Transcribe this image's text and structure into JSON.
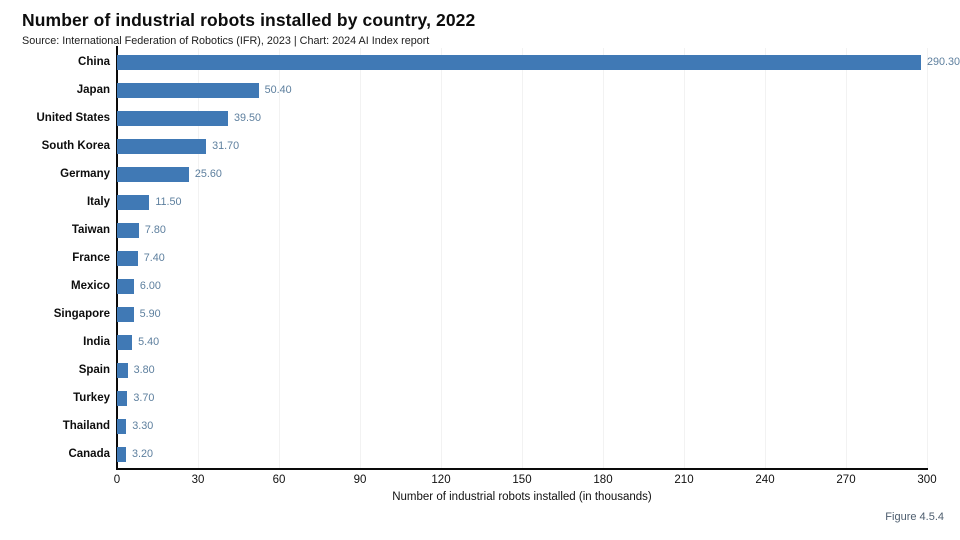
{
  "header": {
    "title": "Number of industrial robots installed by country, 2022",
    "subtitle": "Source: International Federation of Robotics (IFR), 2023 | Chart: 2024 AI Index report"
  },
  "figure_label": "Figure 4.5.4",
  "colors": {
    "bar": "#4079b5",
    "value_label": "#5d7f9e",
    "axis": "#0a0a0a",
    "grid": "#f2f2f2",
    "figure_label": "#4d5d6e"
  },
  "chart_data": {
    "type": "bar",
    "orientation": "horizontal",
    "title": "Number of industrial robots installed by country, 2022",
    "categories": [
      "China",
      "Japan",
      "United States",
      "South Korea",
      "Germany",
      "Italy",
      "Taiwan",
      "France",
      "Mexico",
      "Singapore",
      "India",
      "Spain",
      "Turkey",
      "Thailand",
      "Canada"
    ],
    "values": [
      290.3,
      50.4,
      39.5,
      31.7,
      25.6,
      11.5,
      7.8,
      7.4,
      6.0,
      5.9,
      5.4,
      3.8,
      3.7,
      3.3,
      3.2
    ],
    "value_labels": [
      "290.30",
      "50.40",
      "39.50",
      "31.70",
      "25.60",
      "11.50",
      "7.80",
      "7.40",
      "6.00",
      "5.90",
      "5.40",
      "3.80",
      "3.70",
      "3.30",
      "3.20"
    ],
    "xlabel": "Number of industrial robots installed (in thousands)",
    "ylabel": "",
    "xlim": [
      0,
      300
    ],
    "xticks": [
      0,
      30,
      60,
      90,
      120,
      150,
      180,
      210,
      240,
      270,
      300
    ],
    "grid": "vertical-faint",
    "legend": "none"
  }
}
